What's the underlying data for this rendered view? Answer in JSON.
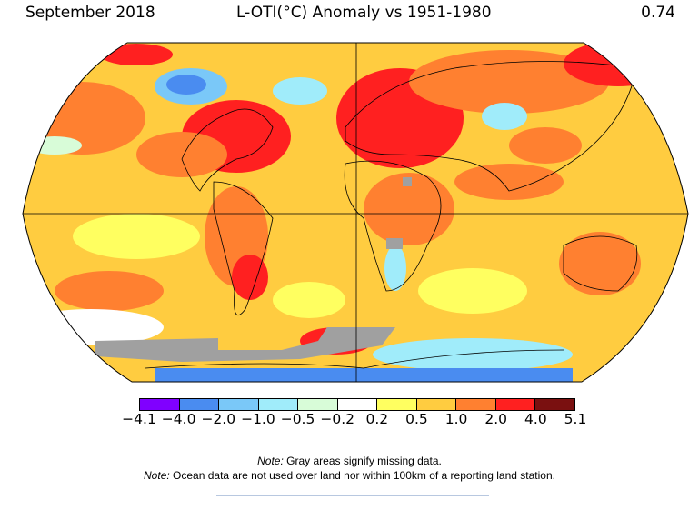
{
  "header": {
    "period": "September 2018",
    "title": "L-OTI(°C) Anomaly vs 1951-1980",
    "global_mean": "0.74"
  },
  "colorbar": {
    "colors": [
      "#8000ff",
      "#4a8cf0",
      "#7ac8f8",
      "#a0ecfa",
      "#d8fcd8",
      "#ffffff",
      "#ffff60",
      "#ffcc40",
      "#ff8030",
      "#ff2020",
      "#7a1010"
    ],
    "ticks": [
      "−4.1",
      "−4.0",
      "−2.0",
      "−1.0",
      "−0.5",
      "−0.2",
      "0.2",
      "0.5",
      "1.0",
      "2.0",
      "4.0",
      "5.1"
    ]
  },
  "notes": [
    {
      "label": "Note:",
      "text": " Gray areas signify missing data."
    },
    {
      "label": "Note:",
      "text": " Ocean data are not used over land nor within 100km of a reporting land station."
    }
  ],
  "colors": {
    "missing": "#a0a0a0"
  }
}
